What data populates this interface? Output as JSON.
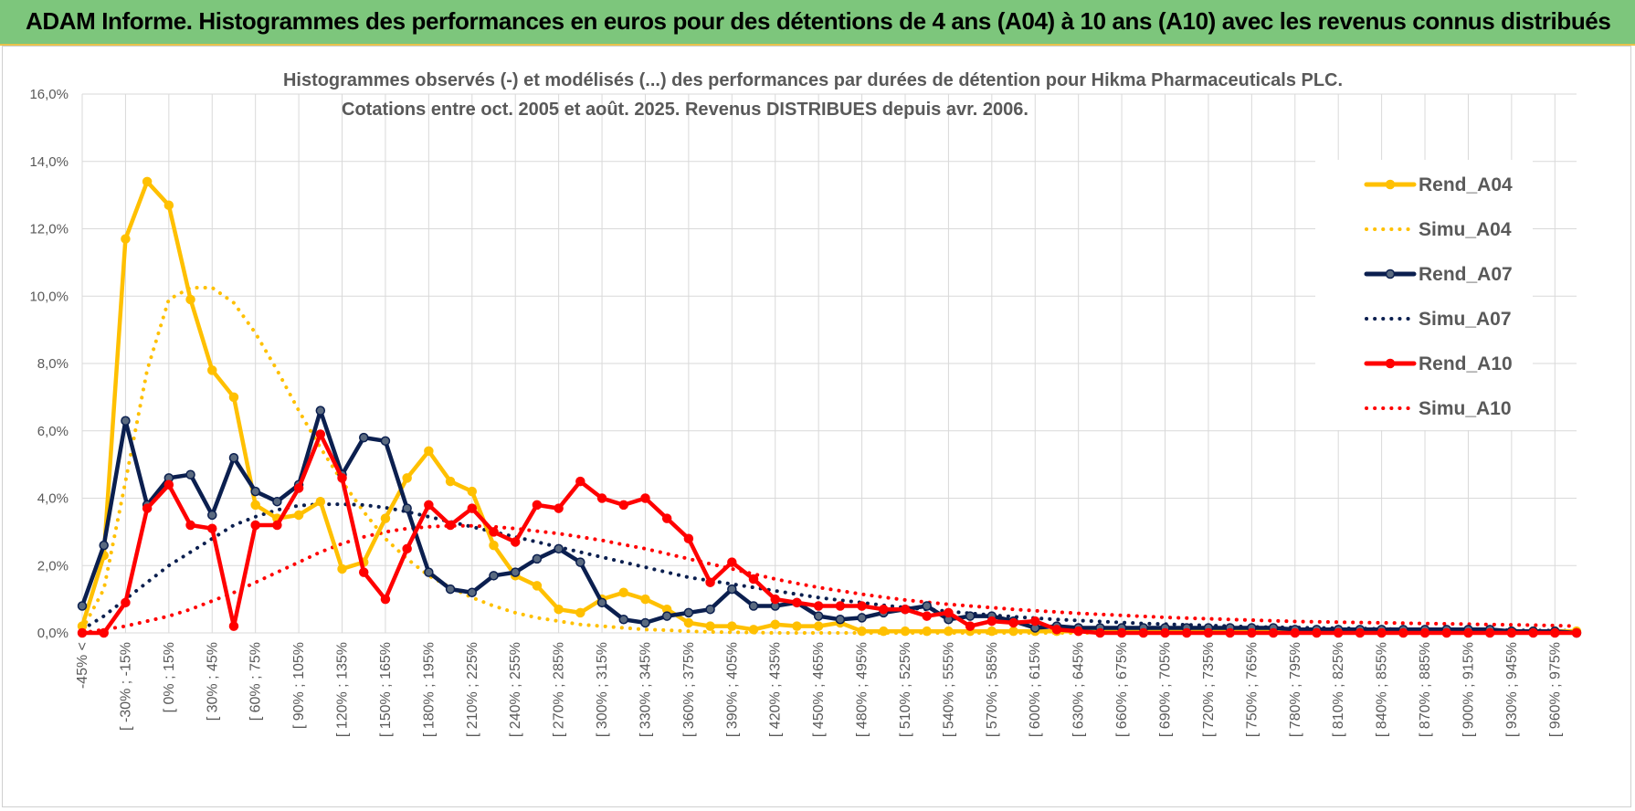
{
  "banner": {
    "title": "ADAM Informe. Histogrammes des performances en euros pour des détentions de 4 ans (A04) à 10 ans (A10) avec les revenus connus distribués",
    "background": "#7dc67c",
    "accent": "#e9c24b"
  },
  "chart_data": {
    "type": "line",
    "title": "Histogrammes observés (-) et modélisés (...) des performances par durées de détention pour Hikma Pharmaceuticals PLC.",
    "subtitle": "Cotations entre oct. 2005 et août. 2025.  Revenus DISTRIBUES depuis avr. 2006.",
    "xlabel": "",
    "ylabel": "",
    "ylim": [
      0,
      16
    ],
    "y_ticks": [
      "0,0%",
      "2,0%",
      "4,0%",
      "6,0%",
      "8,0%",
      "10,0%",
      "12,0%",
      "14,0%",
      "16,0%"
    ],
    "grid": true,
    "legend_position": "right",
    "x_labels": [
      "-45% <",
      "[ -30% ; -15%",
      "[ 0% ; 15%",
      "[ 30% ; 45%",
      "[ 60% ; 75%",
      "[ 90% ; 105%",
      "[ 120% ; 135%",
      "[ 150% ; 165%",
      "[ 180% ; 195%",
      "[ 210% ; 225%",
      "[ 240% ; 255%",
      "[ 270% ; 285%",
      "[ 300% ; 315%",
      "[ 330% ; 345%",
      "[ 360% ; 375%",
      "[ 390% ; 405%",
      "[ 420% ; 435%",
      "[ 450% ; 465%",
      "[ 480% ; 495%",
      "[ 510% ; 525%",
      "[ 540% ; 555%",
      "[ 570% ; 585%",
      "[ 600% ; 615%",
      "[ 630% ; 645%",
      "[ 660% ; 675%",
      "[ 690% ; 705%",
      "[ 720% ; 735%",
      "[ 750% ; 765%",
      "[ 780% ; 795%",
      "[ 810% ; 825%",
      "[ 840% ; 855%",
      "[ 870% ; 885%",
      "[ 900% ; 915%",
      "[ 930% ; 945%",
      "[ 960% ; 975%"
    ],
    "series": [
      {
        "name": "Rend_A04",
        "color": "#ffc000",
        "style": "solid",
        "markers": true,
        "values": [
          0.2,
          2.3,
          11.7,
          13.4,
          12.7,
          9.9,
          7.8,
          7.0,
          3.8,
          3.4,
          3.5,
          3.9,
          1.9,
          2.1,
          3.4,
          4.6,
          5.4,
          4.5,
          4.2,
          2.6,
          1.7,
          1.4,
          0.7,
          0.6,
          1.0,
          1.2,
          1.0,
          0.7,
          0.3,
          0.2,
          0.2,
          0.1,
          0.25,
          0.2,
          0.2,
          0.3,
          0.05,
          0.05,
          0.05,
          0.05,
          0.05,
          0.05,
          0.05,
          0.05,
          0.05,
          0.05,
          0.05,
          0.05,
          0.05,
          0.05,
          0.05,
          0.05,
          0.05,
          0.05,
          0.05,
          0.05,
          0.05,
          0.05,
          0.05,
          0.05,
          0.05,
          0.05,
          0.05,
          0.05,
          0.05,
          0.05,
          0.05,
          0.05,
          0.05,
          0.05
        ]
      },
      {
        "name": "Simu_A04",
        "color": "#ffc000",
        "style": "dotted",
        "markers": false,
        "values": [
          0.1,
          1.3,
          4.5,
          7.8,
          9.9,
          10.25,
          10.25,
          9.8,
          8.9,
          7.8,
          6.6,
          5.5,
          4.5,
          3.6,
          2.8,
          2.2,
          1.7,
          1.35,
          1.05,
          0.8,
          0.6,
          0.45,
          0.35,
          0.25,
          0.2,
          0.15,
          0.1,
          0.08,
          0.05,
          0.03,
          0.02,
          0.01,
          0,
          0,
          0,
          0,
          0,
          0,
          0,
          0,
          0,
          0,
          0,
          0,
          0,
          0,
          0,
          0,
          0,
          0,
          0,
          0,
          0,
          0,
          0,
          0,
          0,
          0,
          0,
          0,
          0,
          0,
          0,
          0,
          0,
          0,
          0,
          0,
          0,
          0
        ]
      },
      {
        "name": "Rend_A07",
        "color": "#0b1f4f",
        "style": "solid",
        "markers": true,
        "values": [
          0.8,
          2.6,
          6.3,
          3.8,
          4.6,
          4.7,
          3.5,
          5.2,
          4.2,
          3.9,
          4.4,
          6.6,
          4.7,
          5.8,
          5.7,
          3.7,
          1.8,
          1.3,
          1.2,
          1.7,
          1.8,
          2.2,
          2.5,
          2.1,
          0.9,
          0.4,
          0.3,
          0.5,
          0.6,
          0.7,
          1.3,
          0.8,
          0.8,
          0.9,
          0.5,
          0.4,
          0.45,
          0.6,
          0.7,
          0.8,
          0.4,
          0.5,
          0.5,
          0.35,
          0.15,
          0.2,
          0.15,
          0.15,
          0.15,
          0.15,
          0.15,
          0.15,
          0.15,
          0.15,
          0.15,
          0.15,
          0.1,
          0.1,
          0.1,
          0.1,
          0.1,
          0.1,
          0.1,
          0.1,
          0.1,
          0.1,
          0.05,
          0.05,
          0.05,
          0.0
        ]
      },
      {
        "name": "Simu_A07",
        "color": "#0b1f4f",
        "style": "dotted",
        "markers": false,
        "values": [
          0.1,
          0.5,
          1.0,
          1.5,
          2.0,
          2.4,
          2.8,
          3.2,
          3.45,
          3.65,
          3.78,
          3.82,
          3.82,
          3.8,
          3.72,
          3.6,
          3.45,
          3.3,
          3.15,
          3.0,
          2.85,
          2.7,
          2.55,
          2.4,
          2.25,
          2.1,
          1.95,
          1.8,
          1.65,
          1.55,
          1.45,
          1.35,
          1.25,
          1.15,
          1.05,
          0.97,
          0.9,
          0.82,
          0.75,
          0.7,
          0.64,
          0.58,
          0.53,
          0.48,
          0.44,
          0.4,
          0.37,
          0.34,
          0.31,
          0.28,
          0.26,
          0.24,
          0.22,
          0.2,
          0.18,
          0.17,
          0.16,
          0.15,
          0.14,
          0.13,
          0.12,
          0.11,
          0.1,
          0.1,
          0.09,
          0.08,
          0.08,
          0.07,
          0.07,
          0.06
        ]
      },
      {
        "name": "Rend_A10",
        "color": "#ff0000",
        "style": "solid",
        "markers": true,
        "values": [
          0.0,
          0.0,
          0.9,
          3.7,
          4.4,
          3.2,
          3.1,
          0.2,
          3.2,
          3.2,
          4.3,
          5.9,
          4.6,
          1.8,
          1.0,
          2.5,
          3.8,
          3.2,
          3.7,
          3.0,
          2.7,
          3.8,
          3.7,
          4.5,
          4.0,
          3.8,
          4.0,
          3.4,
          2.8,
          1.5,
          2.1,
          1.6,
          1.0,
          0.9,
          0.8,
          0.8,
          0.8,
          0.7,
          0.7,
          0.5,
          0.6,
          0.2,
          0.35,
          0.3,
          0.35,
          0.1,
          0.05,
          0.0,
          0.0,
          0.0,
          0.0,
          0.0,
          0.0,
          0.0,
          0.0,
          0.0,
          0.0,
          0.0,
          0.0,
          0.0,
          0.0,
          0.0,
          0.0,
          0.0,
          0.0,
          0.0,
          0.0,
          0.0,
          0.0,
          0.0
        ]
      },
      {
        "name": "Simu_A10",
        "color": "#ff0000",
        "style": "dotted",
        "markers": false,
        "values": [
          0.0,
          0.1,
          0.2,
          0.35,
          0.5,
          0.7,
          0.95,
          1.2,
          1.5,
          1.8,
          2.1,
          2.4,
          2.65,
          2.85,
          3.0,
          3.1,
          3.15,
          3.18,
          3.18,
          3.15,
          3.1,
          3.02,
          2.95,
          2.85,
          2.75,
          2.62,
          2.5,
          2.35,
          2.2,
          2.05,
          1.9,
          1.75,
          1.6,
          1.47,
          1.35,
          1.25,
          1.15,
          1.06,
          0.98,
          0.91,
          0.85,
          0.8,
          0.75,
          0.7,
          0.66,
          0.62,
          0.58,
          0.55,
          0.52,
          0.49,
          0.46,
          0.44,
          0.42,
          0.4,
          0.38,
          0.36,
          0.34,
          0.33,
          0.32,
          0.31,
          0.3,
          0.29,
          0.28,
          0.27,
          0.26,
          0.25,
          0.24,
          0.23,
          0.22,
          0.2
        ]
      }
    ]
  }
}
